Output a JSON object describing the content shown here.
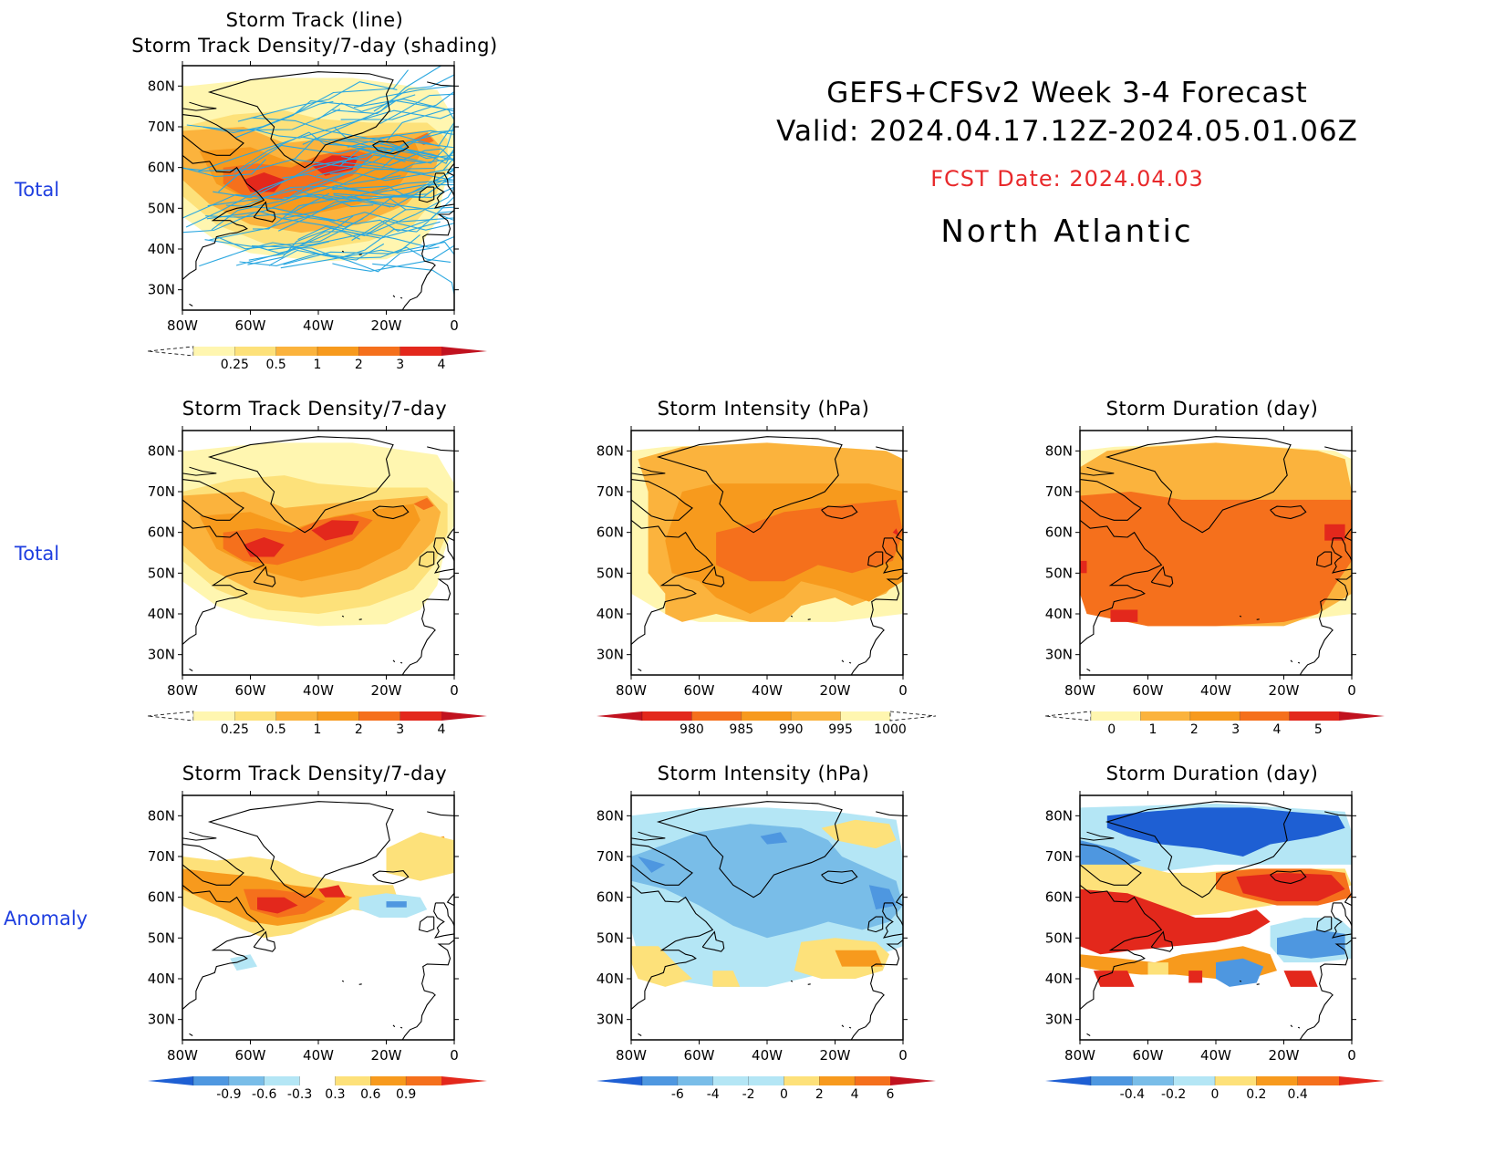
{
  "header": {
    "title_line1": "GEFS+CFSv2  Week  3-4  Forecast",
    "title_line2": "Valid:  2024.04.17.12Z-2024.05.01.06Z",
    "fcst_date": "FCST  Date:  2024.04.03",
    "region": "North  Atlantic"
  },
  "row_labels": [
    "Total",
    "Total",
    "Anomaly"
  ],
  "axes": {
    "lat_ticks": [
      "80N",
      "70N",
      "60N",
      "50N",
      "40N",
      "30N"
    ],
    "lon_ticks": [
      "80W",
      "60W",
      "40W",
      "20W",
      "0"
    ]
  },
  "colors": {
    "land_outline": "#000000",
    "track_line": "#2aa7e0",
    "label_blue": "#1f3fe0",
    "fcst_red": "#e8292b",
    "yellow_light": "#fff6b0",
    "yellow": "#fde17a",
    "orange_light": "#fbb33d",
    "orange": "#f79a1d",
    "orange_dark": "#f5701c",
    "red": "#e3281c",
    "red_dark": "#c1121f",
    "blue_light": "#b4e6f5",
    "blue_mid": "#79bde8",
    "blue": "#4e97e0",
    "blue_dark": "#1e5fd3"
  },
  "panels": [
    {
      "id": "track",
      "title_lines": [
        "Storm Track (line)",
        "Storm Track Density/7-day (shading)"
      ],
      "colorbar": {
        "labels": [
          "0.25",
          "0.5",
          "1",
          "2",
          "3",
          "4"
        ],
        "colors": [
          "#fff6b0",
          "#fde17a",
          "#fbb33d",
          "#f79a1d",
          "#f5701c",
          "#e3281c"
        ],
        "left_open": true,
        "right_color": "#c1121f"
      }
    },
    {
      "id": "density_total",
      "title_lines": [
        "Storm Track Density/7-day"
      ],
      "colorbar": {
        "labels": [
          "0.25",
          "0.5",
          "1",
          "2",
          "3",
          "4"
        ],
        "colors": [
          "#fff6b0",
          "#fde17a",
          "#fbb33d",
          "#f79a1d",
          "#f5701c",
          "#e3281c"
        ],
        "left_open": true,
        "right_color": "#c1121f"
      }
    },
    {
      "id": "intensity_total",
      "title_lines": [
        "Storm Intensity (hPa)"
      ],
      "colorbar": {
        "labels": [
          "980",
          "985",
          "990",
          "995",
          "1000"
        ],
        "colors": [
          "#e3281c",
          "#f5701c",
          "#f79a1d",
          "#fbb33d",
          "#fff6b0"
        ],
        "left_color": "#c1121f",
        "right_open": true
      }
    },
    {
      "id": "duration_total",
      "title_lines": [
        "Storm Duration (day)"
      ],
      "colorbar": {
        "labels": [
          "0",
          "1",
          "2",
          "3",
          "4",
          "5"
        ],
        "colors": [
          "#fff6b0",
          "#fbb33d",
          "#f79a1d",
          "#f5701c",
          "#e3281c"
        ],
        "left_open": true,
        "right_color": "#c1121f"
      }
    },
    {
      "id": "density_anom",
      "title_lines": [
        "Storm Track Density/7-day"
      ],
      "colorbar": {
        "labels": [
          "-0.9",
          "-0.6",
          "-0.3",
          "0.3",
          "0.6",
          "0.9"
        ],
        "colors": [
          "#4e97e0",
          "#79bde8",
          "#b4e6f5",
          "#ffffff",
          "#fde17a",
          "#f79a1d",
          "#f5701c"
        ],
        "left_color": "#1e5fd3",
        "right_color": "#e3281c"
      }
    },
    {
      "id": "intensity_anom",
      "title_lines": [
        "Storm Intensity (hPa)"
      ],
      "colorbar": {
        "labels": [
          "-6",
          "-4",
          "-2",
          "0",
          "2",
          "4",
          "6"
        ],
        "colors": [
          "#4e97e0",
          "#79bde8",
          "#b4e6f5",
          "#b4e6f5",
          "#fde17a",
          "#f79a1d",
          "#f5701c"
        ],
        "left_color": "#1e5fd3",
        "right_color": "#c1121f"
      }
    },
    {
      "id": "duration_anom",
      "title_lines": [
        "Storm Duration (day)"
      ],
      "colorbar": {
        "labels": [
          "-0.4",
          "-0.2",
          "0",
          "0.2",
          "0.4"
        ],
        "colors": [
          "#4e97e0",
          "#79bde8",
          "#b4e6f5",
          "#fde17a",
          "#f79a1d",
          "#f5701c"
        ],
        "left_color": "#1e5fd3",
        "right_color": "#e3281c"
      }
    }
  ]
}
